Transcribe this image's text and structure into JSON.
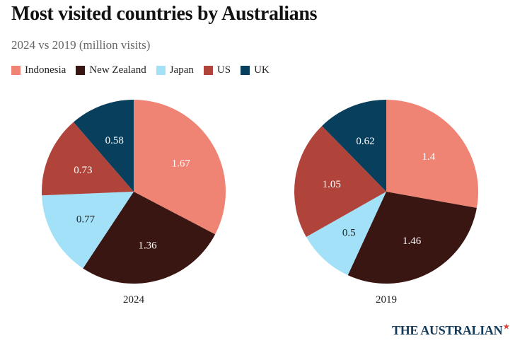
{
  "title": "Most visited countries by Australians",
  "subtitle": "2024 vs 2019 (million visits)",
  "legend": [
    {
      "label": "Indonesia",
      "color": "#f08474"
    },
    {
      "label": "New Zealand",
      "color": "#3a1613"
    },
    {
      "label": "Japan",
      "color": "#a2e1f7"
    },
    {
      "label": "US",
      "color": "#b0443a"
    },
    {
      "label": "UK",
      "color": "#083f5c"
    }
  ],
  "brand": {
    "name": "THE AUSTRALIAN",
    "mark_icon": "red-star-icon"
  },
  "chart_data": [
    {
      "type": "pie",
      "title": "2024",
      "categories": [
        "Indonesia",
        "New Zealand",
        "Japan",
        "US",
        "UK"
      ],
      "values": [
        1.67,
        1.36,
        0.77,
        0.73,
        0.58
      ],
      "labels": [
        "1.67",
        "1.36",
        "0.77",
        "0.73",
        "0.58"
      ],
      "label_colors": [
        "#ffffff",
        "#ffffff",
        "#222222",
        "#ffffff",
        "#ffffff"
      ]
    },
    {
      "type": "pie",
      "title": "2019",
      "categories": [
        "Indonesia",
        "New Zealand",
        "Japan",
        "US",
        "UK"
      ],
      "values": [
        1.4,
        1.46,
        0.5,
        1.05,
        0.62
      ],
      "labels": [
        "1.4",
        "1.46",
        "0.5",
        "1.05",
        "0.62"
      ],
      "label_colors": [
        "#ffffff",
        "#ffffff",
        "#222222",
        "#ffffff",
        "#ffffff"
      ]
    }
  ]
}
